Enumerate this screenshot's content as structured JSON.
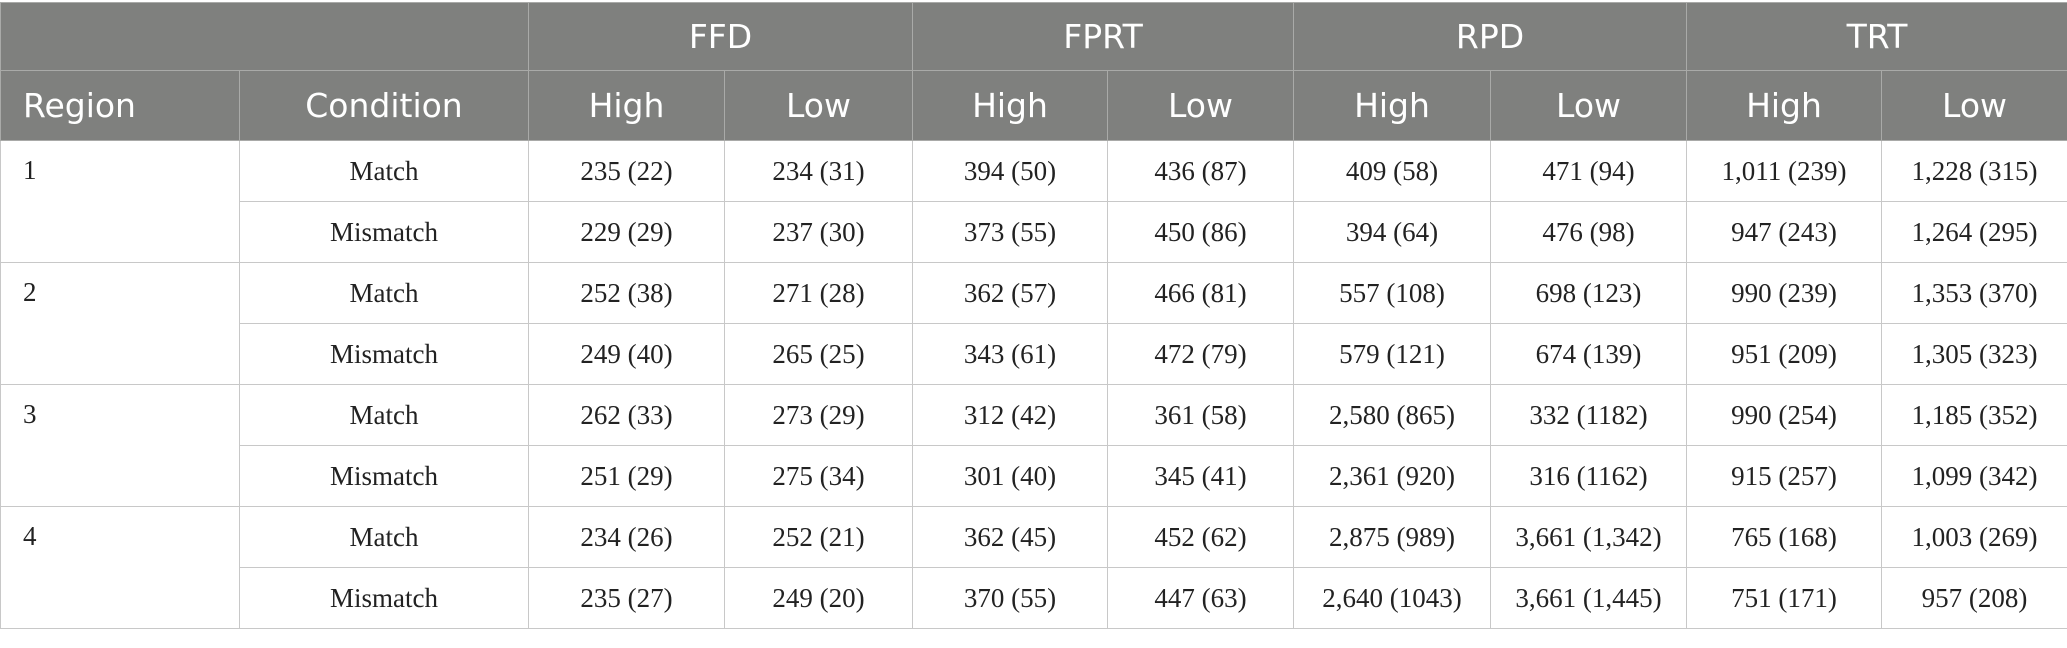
{
  "header": {
    "metrics": [
      "FFD",
      "FPRT",
      "RPD",
      "TRT"
    ],
    "region_label": "Region",
    "condition_label": "Condition",
    "sub_labels": [
      "High",
      "Low"
    ]
  },
  "rows": [
    {
      "region": "1",
      "condition": "Match",
      "values": [
        "235 (22)",
        "234 (31)",
        "394 (50)",
        "436 (87)",
        "409 (58)",
        "471 (94)",
        "1,011 (239)",
        "1,228 (315)"
      ]
    },
    {
      "region": "",
      "condition": "Mismatch",
      "values": [
        "229 (29)",
        "237 (30)",
        "373 (55)",
        "450 (86)",
        "394 (64)",
        "476 (98)",
        "947 (243)",
        "1,264 (295)"
      ]
    },
    {
      "region": "2",
      "condition": "Match",
      "values": [
        "252 (38)",
        "271 (28)",
        "362 (57)",
        "466 (81)",
        "557 (108)",
        "698 (123)",
        "990 (239)",
        "1,353 (370)"
      ]
    },
    {
      "region": "",
      "condition": "Mismatch",
      "values": [
        "249 (40)",
        "265 (25)",
        "343 (61)",
        "472 (79)",
        "579 (121)",
        "674 (139)",
        "951 (209)",
        "1,305 (323)"
      ]
    },
    {
      "region": "3",
      "condition": "Match",
      "values": [
        "262 (33)",
        "273 (29)",
        "312 (42)",
        "361 (58)",
        "2,580 (865)",
        "332 (1182)",
        "990 (254)",
        "1,185 (352)"
      ]
    },
    {
      "region": "",
      "condition": "Mismatch",
      "values": [
        "251 (29)",
        "275 (34)",
        "301 (40)",
        "345 (41)",
        "2,361 (920)",
        "316 (1162)",
        "915 (257)",
        "1,099 (342)"
      ]
    },
    {
      "region": "4",
      "condition": "Match",
      "values": [
        "234 (26)",
        "252 (21)",
        "362 (45)",
        "452 (62)",
        "2,875 (989)",
        "3,661 (1,342)",
        "765 (168)",
        "1,003 (269)"
      ]
    },
    {
      "region": "",
      "condition": "Mismatch",
      "values": [
        "235 (27)",
        "249 (20)",
        "370 (55)",
        "447 (63)",
        "2,640 (1043)",
        "3,661 (1,445)",
        "751 (171)",
        "957 (208)"
      ]
    }
  ]
}
